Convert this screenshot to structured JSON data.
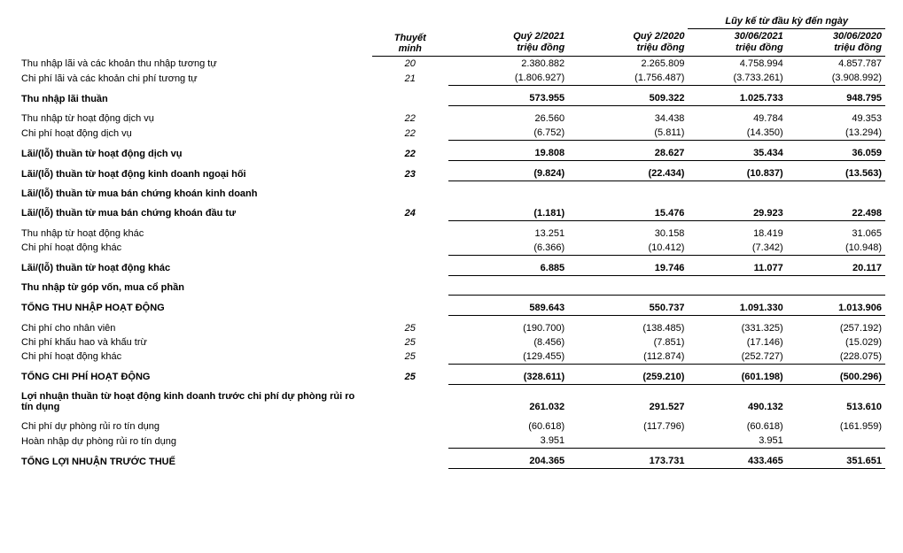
{
  "headers": {
    "note": "Thuyết\nminh",
    "spanLabel": "Lũy kế từ đầu kỳ đến ngày",
    "cols": [
      {
        "title": "Quý 2/2021",
        "unit": "triệu đồng"
      },
      {
        "title": "Quý 2/2020",
        "unit": "triệu đồng"
      },
      {
        "title": "30/06/2021",
        "unit": "triệu đồng"
      },
      {
        "title": "30/06/2020",
        "unit": "triệu đồng"
      }
    ]
  },
  "rows": [
    {
      "label": "Thu nhập lãi và các khoản thu nhập tương tự",
      "note": "20",
      "v": [
        "2.380.882",
        "2.265.809",
        "4.758.994",
        "4.857.787"
      ]
    },
    {
      "label": "Chi phí lãi và các khoản chi phí tương tự",
      "note": "21",
      "v": [
        "(1.806.927)",
        "(1.756.487)",
        "(3.733.261)",
        "(3.908.992)"
      ]
    },
    {
      "label": "Thu nhập lãi thuần",
      "note": "",
      "v": [
        "573.955",
        "509.322",
        "1.025.733",
        "948.795"
      ],
      "bold": true,
      "bt": true,
      "bb": true,
      "padTop": true
    },
    {
      "label": "Thu nhập từ hoạt động dịch vụ",
      "note": "22",
      "v": [
        "26.560",
        "34.438",
        "49.784",
        "49.353"
      ],
      "padTop": true
    },
    {
      "label": "Chi phí hoạt động dịch vụ",
      "note": "22",
      "v": [
        "(6.752)",
        "(5.811)",
        "(14.350)",
        "(13.294)"
      ]
    },
    {
      "label": "Lãi/(lỗ) thuần từ hoạt động dịch vụ",
      "note": "22",
      "v": [
        "19.808",
        "28.627",
        "35.434",
        "36.059"
      ],
      "bold": true,
      "bt": true,
      "bb": true,
      "padTop": true
    },
    {
      "label": "Lãi/(lỗ) thuần từ hoạt động kinh doanh ngoại hối",
      "note": "23",
      "v": [
        "(9.824)",
        "(22.434)",
        "(10.837)",
        "(13.563)"
      ],
      "bold": true,
      "bb": true,
      "padTop": true
    },
    {
      "label": "Lãi/(lỗ) thuần từ mua bán chứng khoán kinh doanh",
      "note": "",
      "v": [
        "",
        "",
        "",
        ""
      ],
      "bold": true,
      "padTop": true
    },
    {
      "label": "Lãi/(lỗ) thuần từ mua bán chứng khoán đầu tư",
      "note": "24",
      "v": [
        "(1.181)",
        "15.476",
        "29.923",
        "22.498"
      ],
      "bold": true,
      "bb": true,
      "padTop": true
    },
    {
      "label": "Thu nhập từ hoạt động khác",
      "note": "",
      "v": [
        "13.251",
        "30.158",
        "18.419",
        "31.065"
      ],
      "padTop": true
    },
    {
      "label": "Chi phí hoạt động khác",
      "note": "",
      "v": [
        "(6.366)",
        "(10.412)",
        "(7.342)",
        "(10.948)"
      ]
    },
    {
      "label": "Lãi/(lỗ) thuần từ hoạt động khác",
      "note": "",
      "v": [
        "6.885",
        "19.746",
        "11.077",
        "20.117"
      ],
      "bold": true,
      "bt": true,
      "bb": true,
      "padTop": true
    },
    {
      "label": "Thu nhập từ góp vốn, mua cổ phần",
      "note": "",
      "v": [
        "",
        "",
        "",
        ""
      ],
      "bold": true,
      "padTop": true
    },
    {
      "label": "TỔNG THU NHẬP HOẠT ĐỘNG",
      "note": "",
      "v": [
        "589.643",
        "550.737",
        "1.091.330",
        "1.013.906"
      ],
      "bold": true,
      "bt": true,
      "bb": true,
      "padTop": true
    },
    {
      "label": "Chi phí cho nhân viên",
      "note": "25",
      "v": [
        "(190.700)",
        "(138.485)",
        "(331.325)",
        "(257.192)"
      ],
      "padTop": true
    },
    {
      "label": "Chi phí khấu hao và khấu trừ",
      "note": "25",
      "v": [
        "(8.456)",
        "(7.851)",
        "(17.146)",
        "(15.029)"
      ]
    },
    {
      "label": "Chi phí hoạt động khác",
      "note": "25",
      "v": [
        "(129.455)",
        "(112.874)",
        "(252.727)",
        "(228.075)"
      ]
    },
    {
      "label": "TỔNG CHI PHÍ HOẠT ĐỘNG",
      "note": "25",
      "v": [
        "(328.611)",
        "(259.210)",
        "(601.198)",
        "(500.296)"
      ],
      "bold": true,
      "bt": true,
      "bb": true,
      "padTop": true
    },
    {
      "label": "Lợi nhuận thuần từ hoạt động kinh doanh trước chi phí dự phòng rủi ro tín dụng",
      "note": "",
      "v": [
        "261.032",
        "291.527",
        "490.132",
        "513.610"
      ],
      "bold": true,
      "padTop": true
    },
    {
      "label": "Chi phí dự phòng rủi ro tín dụng",
      "note": "",
      "v": [
        "(60.618)",
        "(117.796)",
        "(60.618)",
        "(161.959)"
      ],
      "padTop": true
    },
    {
      "label": "Hoàn nhập dự phòng rủi ro tín dụng",
      "note": "",
      "v": [
        "3.951",
        "",
        "3.951",
        ""
      ]
    },
    {
      "label": "TỔNG LỢI NHUẬN TRƯỚC THUẾ",
      "note": "",
      "v": [
        "204.365",
        "173.731",
        "433.465",
        "351.651"
      ],
      "bold": true,
      "bt": true,
      "bb": true,
      "padTop": true
    }
  ]
}
